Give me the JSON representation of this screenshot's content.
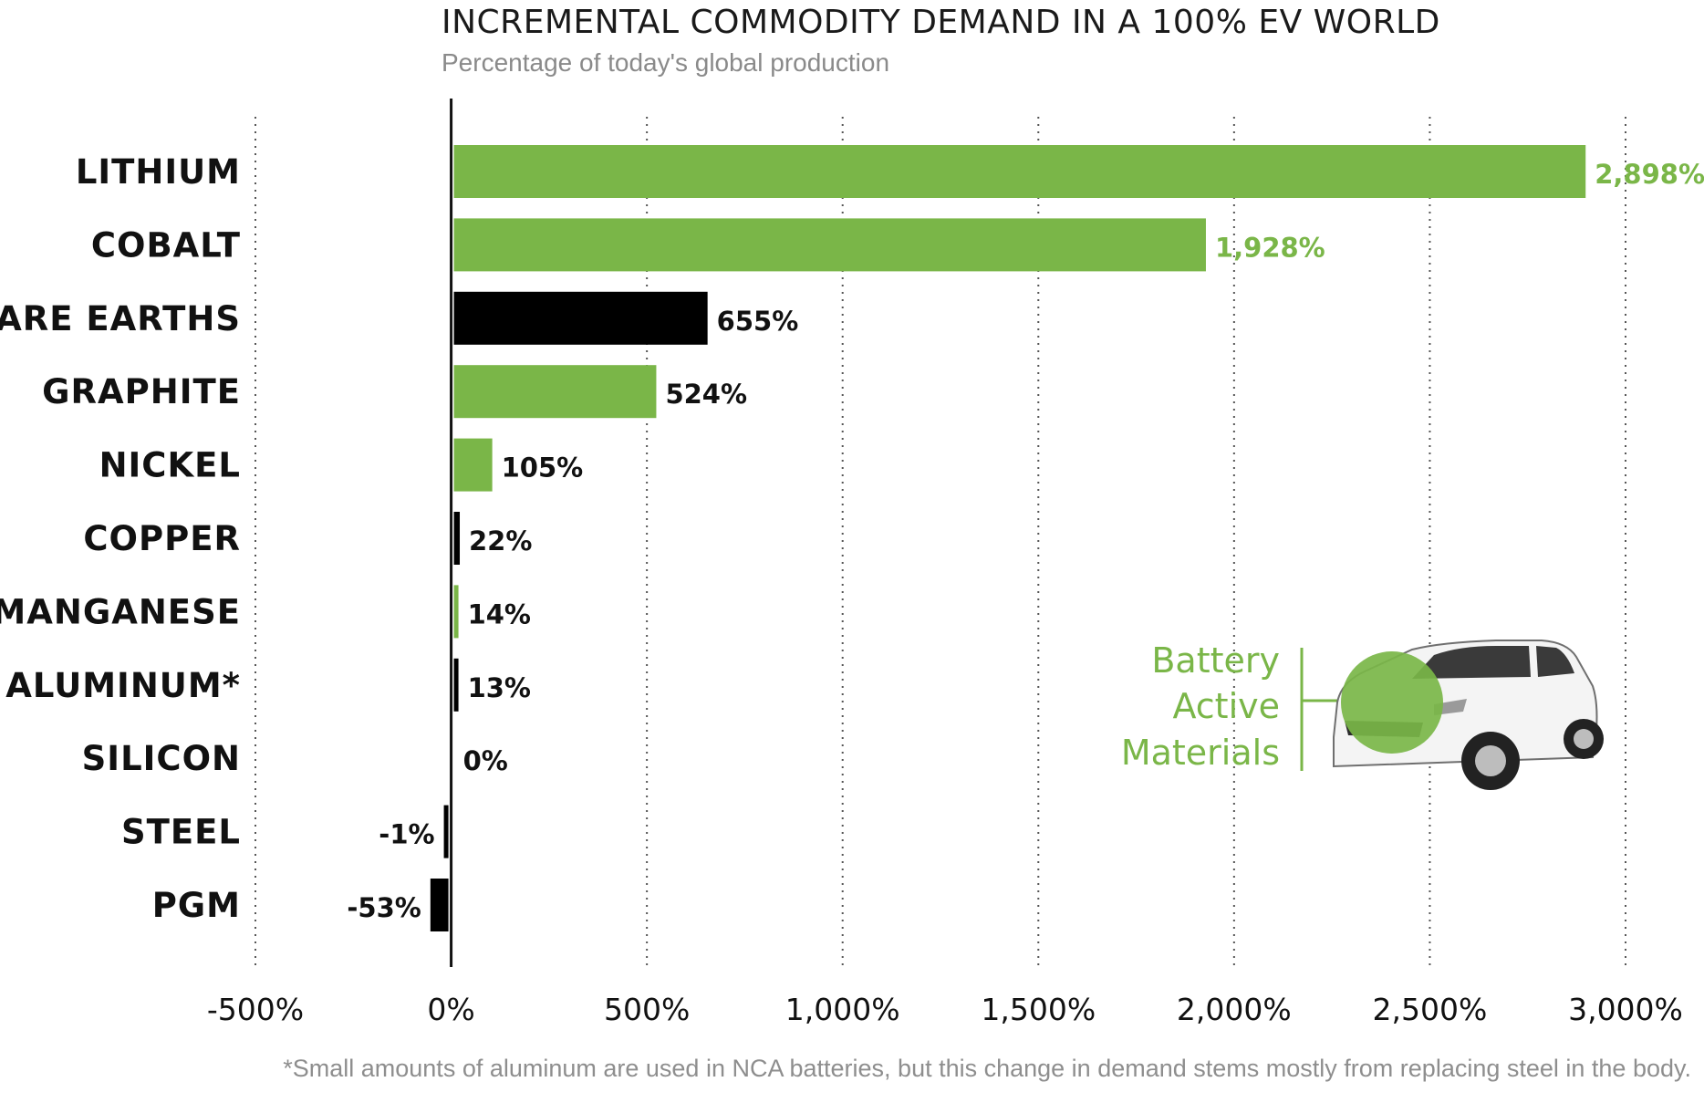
{
  "chart_data": {
    "type": "bar",
    "orientation": "horizontal",
    "title": "INCREMENTAL COMMODITY DEMAND IN A 100% EV WORLD",
    "subtitle": "Percentage of today's global production",
    "categories": [
      "LITHIUM",
      "COBALT",
      "RARE EARTHS",
      "GRAPHITE",
      "NICKEL",
      "COPPER",
      "MANGANESE",
      "ALUMINUM*",
      "SILICON",
      "STEEL",
      "PGM"
    ],
    "values": [
      2898,
      1928,
      655,
      524,
      105,
      22,
      14,
      13,
      0,
      -1,
      -53
    ],
    "value_labels": [
      "2,898%",
      "1,928%",
      "655%",
      "524%",
      "105%",
      "22%",
      "14%",
      "13%",
      "0%",
      "-1%",
      "-53%"
    ],
    "battery_active_material": [
      true,
      true,
      false,
      true,
      true,
      false,
      true,
      false,
      false,
      false,
      false
    ],
    "xlim": [
      -500,
      3000
    ],
    "xticks": [
      -500,
      0,
      500,
      1000,
      1500,
      2000,
      2500,
      3000
    ],
    "xtick_labels": [
      "-500%",
      "0%",
      "500%",
      "1,000%",
      "1,500%",
      "2,000%",
      "2,500%",
      "3,000%"
    ],
    "xlabel": "",
    "ylabel": "",
    "grid": "dotted vertical",
    "legend": {
      "label_lines": [
        "Battery",
        "Active",
        "Materials"
      ],
      "placement": "bottom-right",
      "image": "electric-car"
    },
    "footnote": "*Small amounts of aluminum are used in NCA batteries, but this change in demand stems mostly from replacing steel in the body."
  },
  "colors": {
    "battery": "#7ab648",
    "other": "#000000",
    "grid": "#555555",
    "title": "#1a1a1a",
    "subtitle": "#8a8a8a",
    "footnote": "#8e8e8e"
  }
}
